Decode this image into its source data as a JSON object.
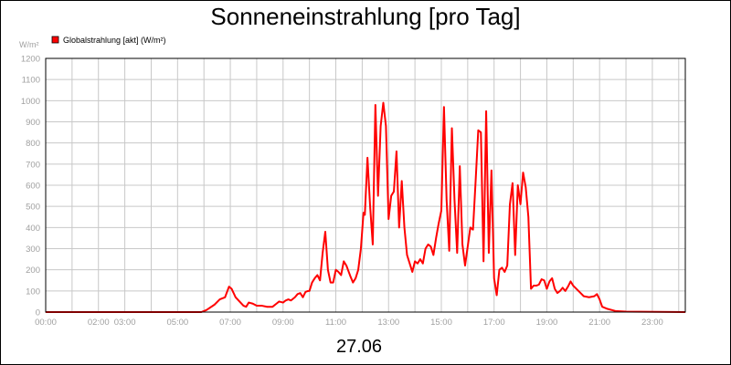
{
  "chart_data": {
    "type": "line",
    "title": "Sonneneinstrahlung [pro Tag]",
    "xlabel": "27.06",
    "ylabel": "W/m²",
    "ylim": [
      0,
      1200
    ],
    "xlim": [
      0,
      24.25
    ],
    "yticks": [
      0,
      100,
      200,
      300,
      400,
      500,
      600,
      700,
      800,
      900,
      1000,
      1100,
      1200
    ],
    "xticks": [
      {
        "x": 0,
        "label": "00:00"
      },
      {
        "x": 2,
        "label": "02:00"
      },
      {
        "x": 3,
        "label": "03:00"
      },
      {
        "x": 5,
        "label": "05:00"
      },
      {
        "x": 7,
        "label": "07:00"
      },
      {
        "x": 9,
        "label": "09:00"
      },
      {
        "x": 11,
        "label": "11:00"
      },
      {
        "x": 13,
        "label": "13:00"
      },
      {
        "x": 15,
        "label": "15:00"
      },
      {
        "x": 17,
        "label": "17:00"
      },
      {
        "x": 19,
        "label": "19:00"
      },
      {
        "x": 21,
        "label": "21:00"
      },
      {
        "x": 23,
        "label": "23:00"
      }
    ],
    "grid": true,
    "legend": "top-left",
    "series": [
      {
        "name": "Globalstrahlung [akt] (W/m²)",
        "color": "#ff0000",
        "x": [
          0,
          5.9,
          6.1,
          6.4,
          6.6,
          6.8,
          6.95,
          7.05,
          7.2,
          7.35,
          7.5,
          7.6,
          7.7,
          7.85,
          8.0,
          8.2,
          8.4,
          8.6,
          8.75,
          8.85,
          9.0,
          9.1,
          9.2,
          9.3,
          9.45,
          9.55,
          9.65,
          9.75,
          9.85,
          9.95,
          10.0,
          10.1,
          10.2,
          10.3,
          10.4,
          10.5,
          10.6,
          10.7,
          10.8,
          10.9,
          11.0,
          11.1,
          11.2,
          11.3,
          11.4,
          11.55,
          11.65,
          11.75,
          11.85,
          11.95,
          12.05,
          12.1,
          12.2,
          12.3,
          12.4,
          12.5,
          12.6,
          12.7,
          12.8,
          12.9,
          13.0,
          13.1,
          13.2,
          13.3,
          13.4,
          13.5,
          13.6,
          13.7,
          13.8,
          13.9,
          14.0,
          14.1,
          14.2,
          14.3,
          14.4,
          14.5,
          14.6,
          14.7,
          14.8,
          14.9,
          15.0,
          15.1,
          15.2,
          15.3,
          15.4,
          15.5,
          15.6,
          15.7,
          15.8,
          15.9,
          16.0,
          16.1,
          16.2,
          16.3,
          16.4,
          16.5,
          16.6,
          16.7,
          16.8,
          16.9,
          17.0,
          17.1,
          17.2,
          17.3,
          17.4,
          17.5,
          17.6,
          17.7,
          17.8,
          17.9,
          18.0,
          18.1,
          18.2,
          18.3,
          18.4,
          18.5,
          18.6,
          18.7,
          18.8,
          18.9,
          19.0,
          19.1,
          19.2,
          19.3,
          19.4,
          19.5,
          19.6,
          19.7,
          19.8,
          19.9,
          20.0,
          20.2,
          20.4,
          20.6,
          20.8,
          20.9,
          21.0,
          21.1,
          21.3,
          21.6,
          22.0,
          24.25
        ],
        "y": [
          0,
          0,
          10,
          35,
          60,
          70,
          120,
          110,
          70,
          50,
          30,
          25,
          45,
          40,
          30,
          30,
          25,
          25,
          40,
          50,
          45,
          55,
          60,
          55,
          70,
          85,
          90,
          70,
          95,
          100,
          100,
          140,
          160,
          175,
          150,
          280,
          380,
          200,
          140,
          140,
          200,
          190,
          175,
          240,
          220,
          170,
          140,
          160,
          200,
          300,
          470,
          460,
          730,
          500,
          320,
          980,
          550,
          880,
          990,
          880,
          440,
          550,
          570,
          760,
          400,
          620,
          400,
          270,
          230,
          190,
          240,
          230,
          250,
          230,
          300,
          320,
          310,
          270,
          350,
          420,
          480,
          970,
          530,
          290,
          870,
          530,
          280,
          690,
          320,
          220,
          310,
          400,
          390,
          620,
          860,
          850,
          240,
          950,
          280,
          670,
          160,
          80,
          200,
          210,
          190,
          220,
          510,
          610,
          270,
          600,
          510,
          660,
          590,
          450,
          110,
          125,
          125,
          130,
          155,
          150,
          110,
          145,
          160,
          110,
          90,
          100,
          115,
          100,
          120,
          145,
          125,
          100,
          75,
          70,
          75,
          85,
          60,
          25,
          15,
          5,
          2,
          0
        ]
      }
    ]
  }
}
